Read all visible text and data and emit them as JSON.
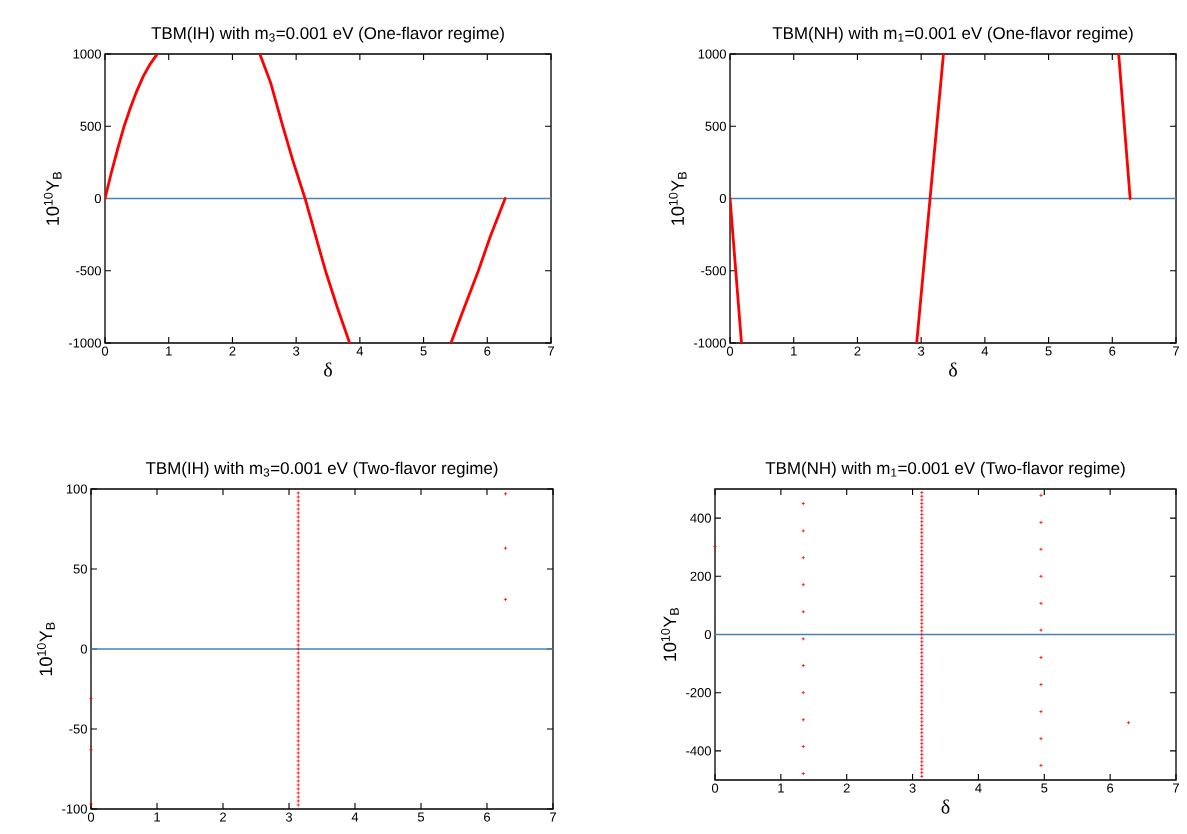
{
  "chart_data": [
    {
      "type": "line",
      "title": "TBM(IH) with m$_{3}$=0.001 eV (One-flavor regime)",
      "xlabel": "δ",
      "ylabel": "10$^{10}$Y$_{B}$",
      "xlim": [
        0,
        7
      ],
      "ylim": [
        -1000,
        1000
      ],
      "xticks": [
        0,
        1,
        2,
        3,
        4,
        5,
        6,
        7
      ],
      "yticks": [
        -1000,
        -500,
        0,
        500,
        1000
      ],
      "ref_lines": [
        {
          "axis": "y",
          "value": 0,
          "color": "#4682b4"
        }
      ],
      "series": [
        {
          "color": "#ff0000",
          "x": [
            0,
            0.1,
            0.2,
            0.3,
            0.4,
            0.5,
            0.6,
            0.7,
            0.82,
            1.5,
            2.43,
            2.6,
            2.79,
            2.95,
            3.14,
            3.3,
            3.46,
            3.65,
            3.84,
            4.6,
            5.43,
            5.6,
            5.86,
            6.05,
            6.28
          ],
          "values": [
            0,
            180,
            345,
            500,
            630,
            745,
            845,
            925,
            1000,
            null,
            1000,
            800,
            500,
            260,
            0,
            -250,
            -500,
            -760,
            -1000,
            null,
            -1000,
            -800,
            -500,
            -260,
            0
          ]
        }
      ]
    },
    {
      "type": "line",
      "title": "TBM(NH) with m$_{1}$=0.001 eV (One-flavor regime)",
      "xlabel": "δ",
      "ylabel": "10$^{10}$Y$_{B}$",
      "xlim": [
        0,
        7
      ],
      "ylim": [
        -1000,
        1000
      ],
      "xticks": [
        0,
        1,
        2,
        3,
        4,
        5,
        6,
        7
      ],
      "yticks": [
        -1000,
        -500,
        0,
        500,
        1000
      ],
      "ref_lines": [
        {
          "axis": "y",
          "value": 0,
          "color": "#4682b4"
        }
      ],
      "series": [
        {
          "color": "#ff0000",
          "x": [
            0,
            0.18,
            1.5,
            2.93,
            3.14,
            3.35,
            4.6,
            6.1,
            6.28
          ],
          "values": [
            0,
            -1000,
            null,
            -1000,
            0,
            1000,
            null,
            1000,
            0
          ]
        }
      ]
    },
    {
      "type": "scatter",
      "title": "TBM(IH) with m$_{3}$=0.001 eV (Two-flavor regime)",
      "ylabel": "10$^{10}$Y$_{B}$",
      "xlim": [
        0,
        7
      ],
      "ylim": [
        -100,
        100
      ],
      "xticks": [
        0,
        1,
        2,
        3,
        4,
        5,
        6,
        7
      ],
      "yticks": [
        -100,
        -50,
        0,
        50,
        100
      ],
      "marker": "cross",
      "ref_lines": [
        {
          "axis": "y",
          "value": 0,
          "color": "#4682b4"
        }
      ],
      "series": [
        {
          "color": "#ff0000",
          "x": [
            3.14,
            3.14,
            3.14,
            3.14,
            3.14,
            3.14,
            3.14,
            3.14,
            3.14,
            3.14,
            3.14,
            3.14,
            3.14,
            3.14,
            3.14,
            3.14,
            3.14,
            3.14,
            3.14,
            3.14,
            3.14,
            3.14,
            3.14,
            3.14,
            3.14,
            3.14,
            3.14,
            3.14,
            3.14,
            3.14,
            3.14,
            3.14,
            3.14,
            3.14,
            3.14,
            3.14,
            3.14,
            3.14,
            3.14,
            3.14,
            3.14,
            3.14,
            3.14,
            3.14,
            3.14,
            3.14,
            3.14,
            3.14,
            3.14,
            3.14,
            3.14,
            3.14,
            3.14,
            3.14,
            3.14,
            3.14,
            3.14,
            3.14,
            3.14,
            3.14,
            3.14,
            3.14,
            3.14,
            3.14,
            3.14,
            3.14,
            3.14,
            3.14,
            3.14,
            3.14,
            3.14,
            3.14,
            3.14,
            3.14,
            3.14,
            3.14,
            3.14,
            3.14,
            3.14
          ],
          "values": [
            -97.5,
            -95,
            -92.5,
            -90,
            -87.5,
            -85,
            -82.5,
            -80,
            -77.5,
            -75,
            -72.5,
            -70,
            -67.5,
            -65,
            -62.5,
            -60,
            -57.5,
            -55,
            -52.5,
            -50,
            -47.5,
            -45,
            -42.5,
            -40,
            -37.5,
            -35,
            -32.5,
            -30,
            -27.5,
            -25,
            -22.5,
            -20,
            -17.5,
            -15,
            -12.5,
            -10,
            -7.5,
            -5,
            -2.5,
            0,
            2.5,
            5,
            7.5,
            10,
            12.5,
            15,
            17.5,
            20,
            22.5,
            25,
            27.5,
            30,
            32.5,
            35,
            37.5,
            40,
            42.5,
            45,
            47.5,
            50,
            52.5,
            55,
            57.5,
            60,
            62.5,
            65,
            67.5,
            70,
            72.5,
            75,
            77.5,
            80,
            82.5,
            85,
            87.5,
            90,
            92.5,
            95,
            97.5
          ]
        },
        {
          "color": "#ff0000",
          "x": [
            6.28,
            6.28,
            6.28,
            0,
            0,
            0
          ],
          "values": [
            97,
            63,
            31,
            -31,
            -63,
            -97
          ]
        }
      ]
    },
    {
      "type": "scatter",
      "title": "TBM(NH) with m$_{1}$=0.001 eV (Two-flavor regime)",
      "xlabel": "δ",
      "ylabel": "10$^{10}$Y$_{B}$",
      "xlim": [
        0,
        7
      ],
      "ylim": [
        -500,
        500
      ],
      "xticks": [
        0,
        1,
        2,
        3,
        4,
        5,
        6,
        7
      ],
      "yticks": [
        -400,
        -200,
        0,
        200,
        400
      ],
      "marker": "cross",
      "ref_lines": [
        {
          "axis": "y",
          "value": 0,
          "color": "#4682b4"
        }
      ],
      "series": [
        {
          "color": "#ff0000",
          "x": [
            3.14,
            3.14,
            3.14,
            3.14,
            3.14,
            3.14,
            3.14,
            3.14,
            3.14,
            3.14,
            3.14,
            3.14,
            3.14,
            3.14,
            3.14,
            3.14,
            3.14,
            3.14,
            3.14,
            3.14,
            3.14,
            3.14,
            3.14,
            3.14,
            3.14,
            3.14,
            3.14,
            3.14,
            3.14,
            3.14,
            3.14,
            3.14,
            3.14,
            3.14,
            3.14,
            3.14,
            3.14,
            3.14,
            3.14,
            3.14,
            3.14,
            3.14,
            3.14,
            3.14,
            3.14,
            3.14,
            3.14,
            3.14,
            3.14,
            3.14,
            3.14,
            3.14,
            3.14,
            3.14,
            3.14,
            3.14,
            3.14,
            3.14,
            3.14,
            3.14,
            3.14,
            3.14,
            3.14,
            3.14,
            3.14,
            3.14,
            3.14,
            3.14,
            3.14,
            3.14,
            3.14,
            3.14,
            3.14,
            3.14,
            3.14,
            3.14,
            3.14,
            3.14,
            3.14
          ],
          "values": [
            -487.5,
            -475,
            -462.5,
            -450,
            -437.5,
            -425,
            -412.5,
            -400,
            -387.5,
            -375,
            -362.5,
            -350,
            -337.5,
            -325,
            -312.5,
            -300,
            -287.5,
            -275,
            -262.5,
            -250,
            -237.5,
            -225,
            -212.5,
            -200,
            -187.5,
            -175,
            -162.5,
            -150,
            -137.5,
            -125,
            -112.5,
            -100,
            -87.5,
            -75,
            -62.5,
            -50,
            -37.5,
            -25,
            -12.5,
            0,
            12.5,
            25,
            37.5,
            50,
            62.5,
            75,
            87.5,
            100,
            112.5,
            125,
            137.5,
            150,
            162.5,
            175,
            187.5,
            200,
            212.5,
            225,
            237.5,
            250,
            262.5,
            275,
            287.5,
            300,
            312.5,
            325,
            337.5,
            350,
            362.5,
            375,
            387.5,
            400,
            412.5,
            425,
            437.5,
            450,
            462.5,
            475,
            487.5
          ]
        },
        {
          "color": "#ff0000",
          "x": [
            1.34,
            1.34,
            1.34,
            1.34,
            1.34,
            1.34,
            1.34,
            1.34,
            1.34,
            1.34,
            1.34
          ],
          "values": [
            450,
            356,
            264,
            171,
            78,
            -15,
            -107,
            -200,
            -293,
            -385,
            -478
          ]
        },
        {
          "color": "#ff0000",
          "x": [
            4.95,
            4.95,
            4.95,
            4.95,
            4.95,
            4.95,
            4.95,
            4.95,
            4.95,
            4.95,
            4.95
          ],
          "values": [
            478,
            385,
            293,
            200,
            107,
            15,
            -79,
            -172,
            -265,
            -358,
            -450
          ]
        },
        {
          "color": "#ff0000",
          "x": [
            6.28,
            0
          ],
          "values": [
            -303,
            302
          ]
        }
      ]
    }
  ]
}
